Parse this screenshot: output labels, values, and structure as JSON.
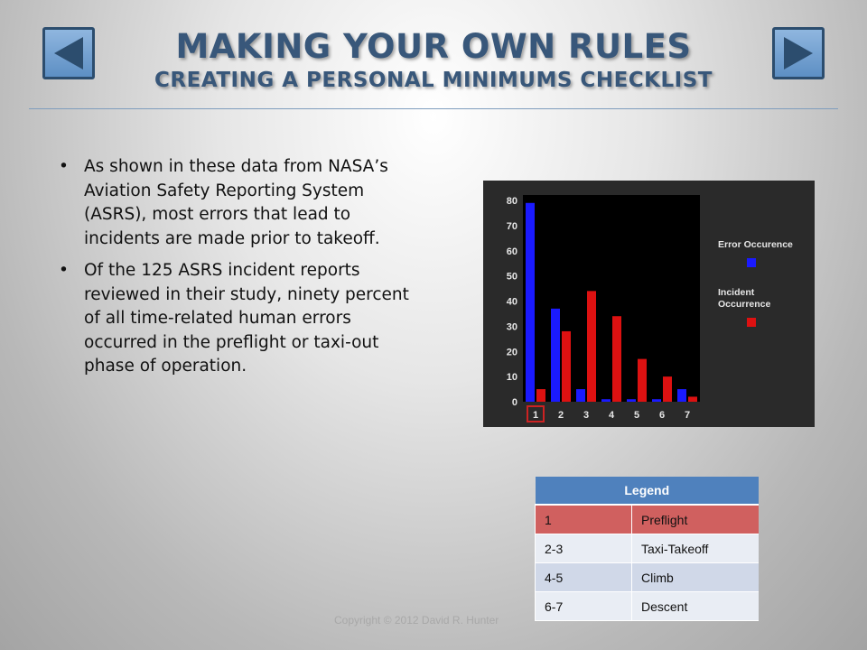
{
  "header": {
    "title": "MAKING YOUR OWN RULES",
    "subtitle": "CREATING A PERSONAL MINIMUMS CHECKLIST"
  },
  "nav": {
    "prev_icon": "left-arrow-icon",
    "next_icon": "right-arrow-icon",
    "button_color": "#5d8fc4",
    "arrow_color": "#2c4d6e"
  },
  "bullets": [
    "As shown in these data from NASA’s Aviation Safety Reporting System (ASRS), most errors that lead to incidents are made prior to takeoff.",
    "Of the 125 ASRS incident reports reviewed in their study, ninety percent of all time-related human errors occurred in the preflight or taxi-out phase of operation."
  ],
  "chart_data": {
    "type": "bar",
    "categories": [
      "1",
      "2",
      "3",
      "4",
      "5",
      "6",
      "7"
    ],
    "y_ticks": [
      "0",
      "10",
      "20",
      "30",
      "40",
      "50",
      "60",
      "70",
      "80"
    ],
    "ylim": [
      0,
      80
    ],
    "highlight_category": "1",
    "series": [
      {
        "name": "Error Occurence",
        "color": "#1a1aff",
        "values": [
          79,
          37,
          5,
          1,
          1,
          1,
          5
        ]
      },
      {
        "name": "Incident Occurrence",
        "color": "#dd1111",
        "values": [
          5,
          28,
          44,
          34,
          17,
          10,
          2
        ]
      }
    ],
    "legend_placement": "right",
    "grid": false
  },
  "phase_legend": {
    "header": "Legend",
    "rows": [
      {
        "code": "1",
        "phase": "Preflight"
      },
      {
        "code": "2-3",
        "phase": "Taxi-Takeoff"
      },
      {
        "code": "4-5",
        "phase": "Climb"
      },
      {
        "code": "6-7",
        "phase": "Descent"
      }
    ]
  },
  "footer": {
    "copyright": "Copyright © 2012 David R. Hunter"
  }
}
